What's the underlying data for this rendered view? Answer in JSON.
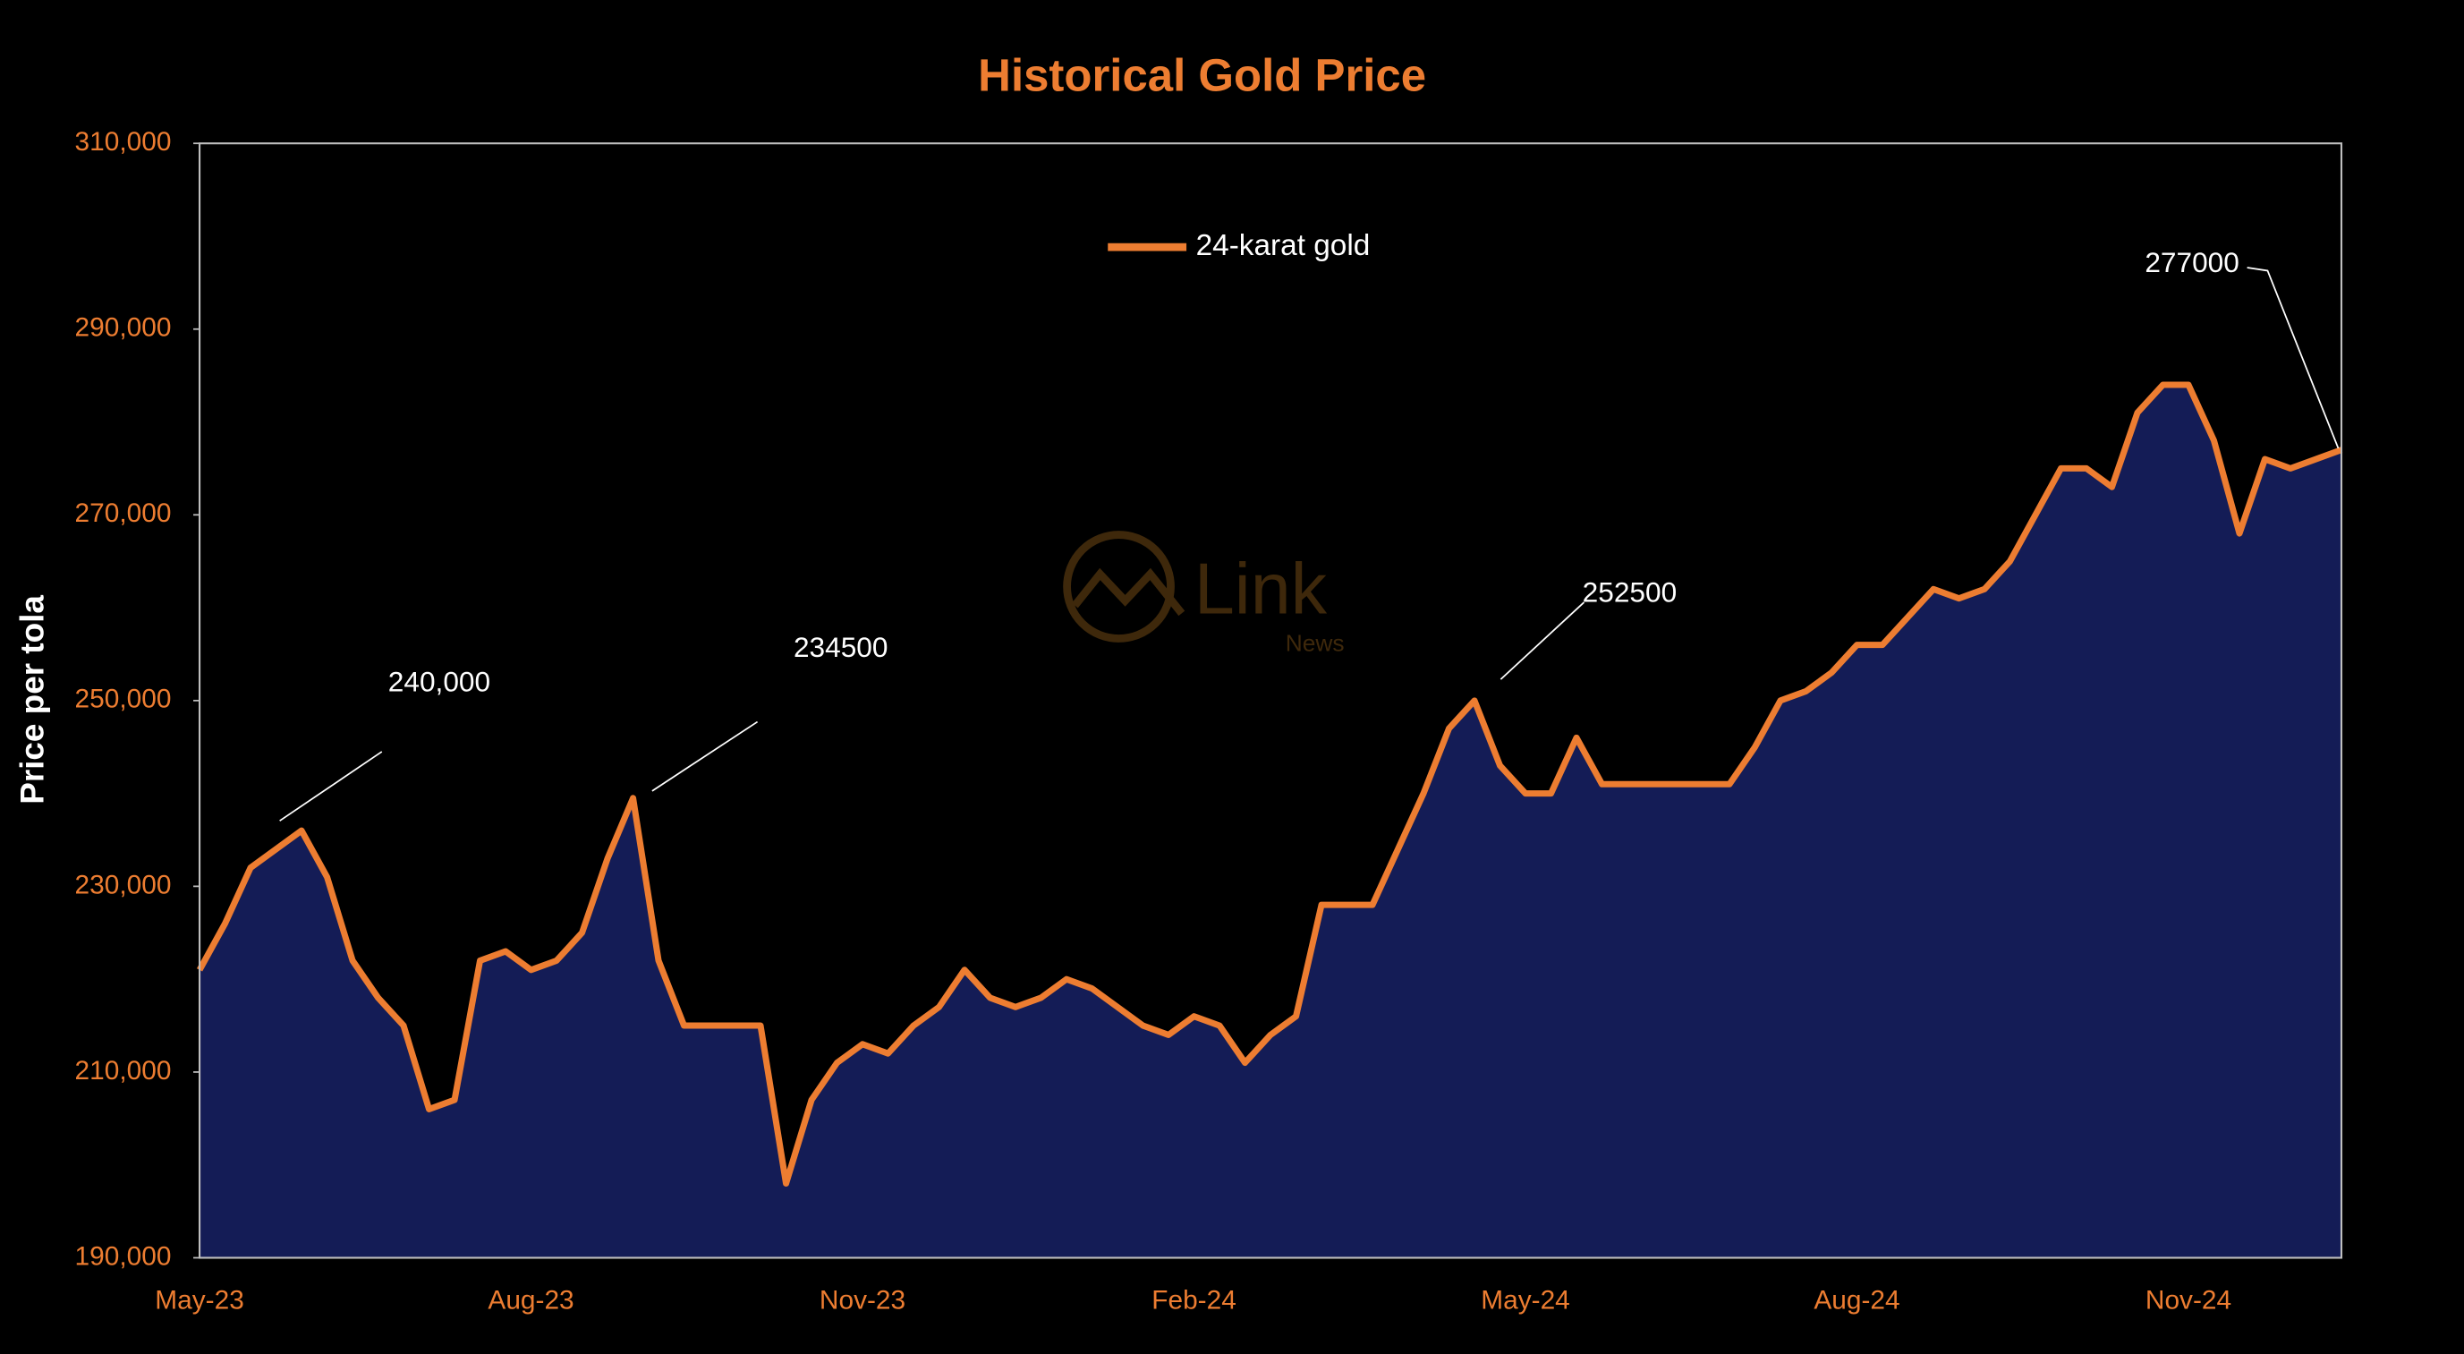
{
  "chart_data": {
    "type": "area-line",
    "title": "Historical Gold Price",
    "y_label": "Price per tola",
    "watermark": {
      "name": "Link",
      "sub": "News"
    },
    "categories": [
      "May-23",
      null,
      null,
      null,
      null,
      null,
      null,
      null,
      null,
      null,
      null,
      null,
      null,
      "Aug-23",
      null,
      null,
      null,
      null,
      null,
      null,
      null,
      null,
      null,
      null,
      null,
      null,
      "Nov-23",
      null,
      null,
      null,
      null,
      null,
      null,
      null,
      null,
      null,
      null,
      null,
      null,
      "Feb-24",
      null,
      null,
      null,
      null,
      null,
      null,
      null,
      null,
      null,
      null,
      null,
      null,
      "May-24",
      null,
      null,
      null,
      null,
      null,
      null,
      null,
      null,
      null,
      null,
      null,
      null,
      "Aug-24",
      null,
      null,
      null,
      null,
      null,
      null,
      null,
      null,
      null,
      null,
      null,
      null,
      "Nov-24",
      null,
      null,
      null,
      null,
      null,
      null
    ],
    "series": [
      {
        "name": "24-karat gold",
        "color": "#ed7d31",
        "fill": "#141c56",
        "values": [
          221000,
          226000,
          232000,
          234000,
          236000,
          231000,
          222000,
          218000,
          215000,
          206000,
          207000,
          222000,
          223000,
          221000,
          222000,
          225000,
          233000,
          239500,
          222000,
          215000,
          215000,
          215000,
          215000,
          198000,
          207000,
          211000,
          213000,
          212000,
          215000,
          217000,
          221000,
          218000,
          217000,
          218000,
          220000,
          219000,
          217000,
          215000,
          214000,
          216000,
          215000,
          211000,
          214000,
          216000,
          228000,
          228000,
          228000,
          234000,
          240000,
          247000,
          250000,
          243000,
          240000,
          240000,
          246000,
          241000,
          241000,
          241000,
          241000,
          241000,
          241000,
          245000,
          250000,
          251000,
          253000,
          256000,
          256000,
          259000,
          262000,
          261000,
          262000,
          265000,
          270000,
          275000,
          275000,
          273000,
          281000,
          284000,
          284000,
          278000,
          268000,
          276000,
          275000,
          276000,
          277000
        ]
      }
    ],
    "annotations": [
      "240,000",
      "234500",
      "252500",
      "277000"
    ],
    "ylim": [
      190000,
      310000
    ],
    "yticks": [
      {
        "value": 190000,
        "label": "190,000"
      },
      {
        "value": 210000,
        "label": "210,000"
      },
      {
        "value": 230000,
        "label": "230,000"
      },
      {
        "value": 250000,
        "label": "250,000"
      },
      {
        "value": 270000,
        "label": "270,000"
      },
      {
        "value": 290000,
        "label": "290,000"
      },
      {
        "value": 310000,
        "label": "310,000"
      }
    ],
    "grid": false,
    "legend": "top"
  }
}
